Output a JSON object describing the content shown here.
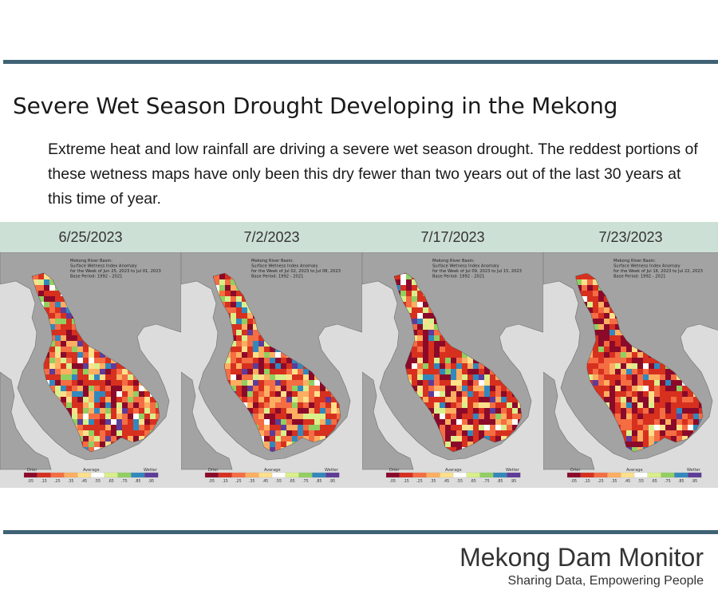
{
  "header": {
    "title": "Severe Wet Season Drought Developing in the Mekong",
    "description": "Extreme heat and low rainfall are driving a severe wet season drought. The reddest portions of these wetness maps have only been this dry fewer than two years out of the last 30 years at this time of year."
  },
  "panels": [
    {
      "date": "6/25/2023",
      "map_title": "Mekong River Basin:",
      "map_subtitle": "Surface Wetness Index Anomaly",
      "map_week": "for the Week of Jun 25, 2023 to Jul 01, 2023",
      "map_base": "Base Period: 1992 - 2021"
    },
    {
      "date": "7/2/2023",
      "map_title": "Mekong River Basin:",
      "map_subtitle": "Surface Wetness Index Anomaly",
      "map_week": "for the Week of Jul 02, 2023 to Jul 08, 2023",
      "map_base": "Base Period: 1992 - 2021"
    },
    {
      "date": "7/17/2023",
      "map_title": "Mekong River Basin:",
      "map_subtitle": "Surface Wetness Index Anomaly",
      "map_week": "for the Week of Jul 09, 2023 to Jul 15, 2023",
      "map_base": "Base Period: 1992 - 2021"
    },
    {
      "date": "7/23/2023",
      "map_title": "Mekong River Basin:",
      "map_subtitle": "Surface Wetness Index Anomaly",
      "map_week": "for the Week of Jul 16, 2023 to Jul 22, 2023",
      "map_base": "Base Period: 1992 - 2021"
    }
  ],
  "legend": {
    "drier": "Drier",
    "average": "Average",
    "wetter": "Wetter",
    "ticks": [
      ".05",
      ".15",
      ".25",
      ".35",
      ".45",
      ".55",
      ".65",
      ".75",
      ".85",
      ".95"
    ],
    "colors": [
      "#8b0a2a",
      "#d7301f",
      "#f46d43",
      "#fdae61",
      "#fee08b",
      "#ffffff",
      "#d9ef8b",
      "#91cf60",
      "#3288bd",
      "#5e3c99"
    ]
  },
  "footer": {
    "brand": "Mekong Dam Monitor",
    "tagline": "Sharing Data, Empowering People"
  }
}
